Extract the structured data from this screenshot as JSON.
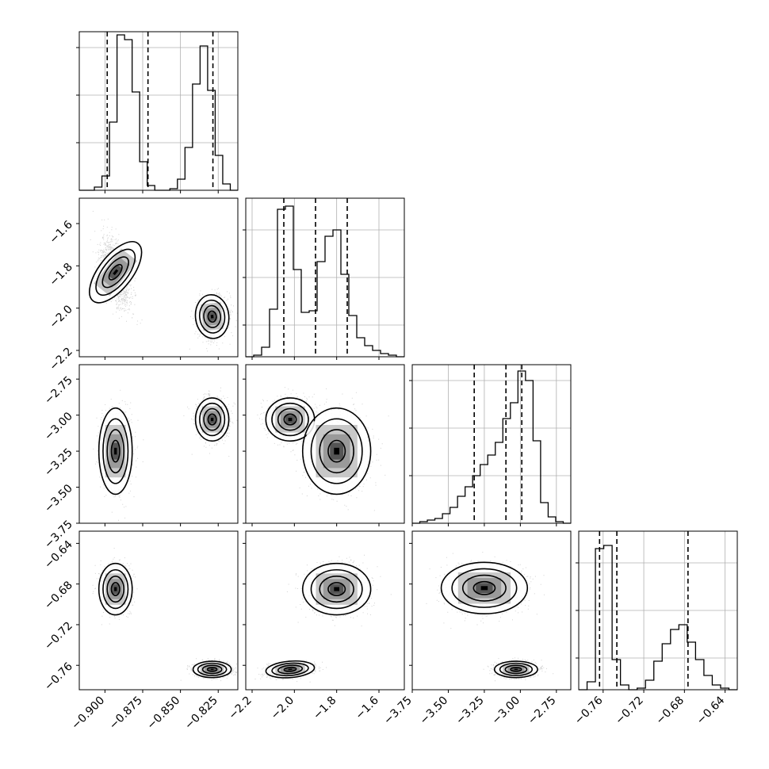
{
  "chart_data": {
    "type": "corner",
    "grid": true,
    "parameters": [
      {
        "range": [
          -0.917,
          -0.812
        ],
        "ticks": [
          -0.9,
          -0.875,
          -0.85,
          -0.825
        ],
        "tick_labels": [
          "−0.900",
          "−0.875",
          "−0.850",
          "−0.825"
        ]
      },
      {
        "range": [
          -2.23,
          -1.48
        ],
        "ticks": [
          -2.2,
          -2.0,
          -1.8,
          -1.6
        ],
        "tick_labels": [
          "−2.2",
          "−2.0",
          "−1.8",
          "−1.6"
        ]
      },
      {
        "range": [
          -3.75,
          -2.65
        ],
        "ticks": [
          -3.75,
          -3.5,
          -3.25,
          -3.0,
          -2.75
        ],
        "tick_labels": [
          "−3.75",
          "−3.50",
          "−3.25",
          "−3.00",
          "−2.75"
        ]
      },
      {
        "range": [
          -0.784,
          -0.628
        ],
        "ticks": [
          -0.76,
          -0.72,
          -0.68,
          -0.64
        ],
        "tick_labels": [
          "−0.76",
          "−0.72",
          "−0.68",
          "−0.64"
        ]
      }
    ],
    "histograms": [
      {
        "param": 0,
        "edges_range": [
          -0.917,
          -0.812
        ],
        "counts": [
          0,
          0,
          2,
          9,
          43,
          98,
          95,
          62,
          18,
          3,
          0,
          0,
          1,
          7,
          27,
          67,
          91,
          63,
          22,
          4,
          0
        ],
        "quantiles": [
          -0.8985,
          -0.8715,
          -0.8285
        ],
        "ylim": [
          0,
          100
        ],
        "grid_y": [
          30,
          60,
          90
        ]
      },
      {
        "param": 1,
        "edges_range": [
          -2.23,
          -1.48
        ],
        "counts": [
          0,
          1,
          6,
          30,
          93,
          95,
          55,
          28,
          29,
          60,
          76,
          80,
          52,
          26,
          12,
          7,
          4,
          2,
          1,
          0
        ],
        "quantiles": [
          -2.05,
          -1.9,
          -1.75
        ],
        "ylim": [
          0,
          100
        ],
        "grid_y": [
          20,
          50,
          80
        ]
      },
      {
        "param": 2,
        "edges_range": [
          -3.75,
          -2.65
        ],
        "counts": [
          0,
          1,
          2,
          3,
          6,
          10,
          17,
          23,
          30,
          37,
          43,
          51,
          66,
          76,
          96,
          90,
          52,
          13,
          4,
          1,
          0
        ],
        "quantiles": [
          -3.32,
          -3.1,
          -2.99
        ],
        "ylim": [
          0,
          100
        ],
        "grid_y": [
          30,
          60,
          90
        ]
      },
      {
        "param": 3,
        "edges_range": [
          -0.784,
          -0.628
        ],
        "counts": [
          0,
          5,
          89,
          91,
          19,
          3,
          0,
          1,
          6,
          18,
          29,
          38,
          41,
          30,
          19,
          9,
          3,
          1,
          0
        ],
        "quantiles": [
          -0.7635,
          -0.7465,
          -0.6765
        ],
        "ylim": [
          0,
          100
        ],
        "grid_y": [
          20,
          50,
          80
        ]
      }
    ],
    "pairs": [
      {
        "x_param": 0,
        "y_param": 1,
        "clusters": [
          {
            "mean": [
              -0.893,
              -1.83
            ],
            "sd": [
              0.0048,
              0.075
            ],
            "rho": -0.5,
            "n": 1600
          },
          {
            "mean": [
              -0.829,
              -2.04
            ],
            "sd": [
              0.0048,
              0.045
            ],
            "rho": 0.1,
            "n": 1600
          }
        ]
      },
      {
        "x_param": 0,
        "y_param": 2,
        "clusters": [
          {
            "mean": [
              -0.893,
              -3.25
            ],
            "sd": [
              0.0048,
              0.13
            ],
            "rho": 0.0,
            "n": 1600
          },
          {
            "mean": [
              -0.829,
              -3.03
            ],
            "sd": [
              0.0048,
              0.065
            ],
            "rho": 0.0,
            "n": 1600
          }
        ]
      },
      {
        "x_param": 1,
        "y_param": 2,
        "clusters": [
          {
            "mean": [
              -2.02,
              -3.03
            ],
            "sd": [
              0.05,
              0.065
            ],
            "rho": 0.0,
            "n": 1600
          },
          {
            "mean": [
              -1.8,
              -3.25
            ],
            "sd": [
              0.07,
              0.13
            ],
            "rho": 0.0,
            "n": 1600
          }
        ]
      },
      {
        "x_param": 0,
        "y_param": 3,
        "clusters": [
          {
            "mean": [
              -0.893,
              -0.685
            ],
            "sd": [
              0.0048,
              0.011
            ],
            "rho": 0.0,
            "n": 1600
          },
          {
            "mean": [
              -0.829,
              -0.764
            ],
            "sd": [
              0.0055,
              0.0035
            ],
            "rho": 0.0,
            "n": 1600
          }
        ]
      },
      {
        "x_param": 1,
        "y_param": 3,
        "clusters": [
          {
            "mean": [
              -2.02,
              -0.764
            ],
            "sd": [
              0.05,
              0.0035
            ],
            "rho": 0.3,
            "n": 1600
          },
          {
            "mean": [
              -1.8,
              -0.685
            ],
            "sd": [
              0.07,
              0.011
            ],
            "rho": 0.0,
            "n": 1600
          }
        ]
      },
      {
        "x_param": 2,
        "y_param": 3,
        "clusters": [
          {
            "mean": [
              -3.25,
              -0.684
            ],
            "sd": [
              0.13,
              0.011
            ],
            "rho": 0.0,
            "n": 1600
          },
          {
            "mean": [
              -3.03,
              -0.764
            ],
            "sd": [
              0.065,
              0.0035
            ],
            "rho": 0.0,
            "n": 1600
          }
        ]
      }
    ]
  }
}
